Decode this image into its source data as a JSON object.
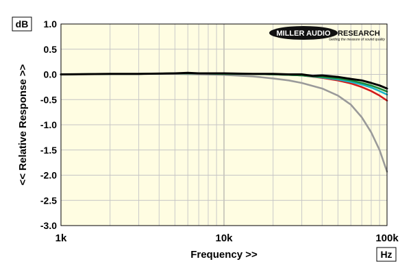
{
  "chart_data": {
    "type": "line",
    "xlabel": "Frequency >>",
    "ylabel": "<< Relative Response >>",
    "x_unit": "Hz",
    "y_unit": "dB",
    "xscale": "log",
    "xlim": [
      1000,
      100000
    ],
    "ylim": [
      -3.0,
      1.0
    ],
    "x_ticks": [
      "1k",
      "10k",
      "100k"
    ],
    "y_ticks": [
      "1.0",
      "0.5",
      "0.0",
      "-0.5",
      "-1.0",
      "-1.5",
      "-2.0",
      "-2.5",
      "-3.0"
    ],
    "grid": true,
    "logo": {
      "name": "MILLER AUDIO RESEARCH",
      "tagline": "Getting the measure of sound quality"
    },
    "series": [
      {
        "color": "#9a9a9a",
        "points": [
          [
            1000,
            0.0
          ],
          [
            2000,
            0.01
          ],
          [
            3000,
            0.01
          ],
          [
            5000,
            0.01
          ],
          [
            7000,
            0.0
          ],
          [
            10000,
            -0.01
          ],
          [
            15000,
            -0.04
          ],
          [
            20000,
            -0.08
          ],
          [
            25000,
            -0.12
          ],
          [
            30000,
            -0.17
          ],
          [
            40000,
            -0.28
          ],
          [
            50000,
            -0.42
          ],
          [
            60000,
            -0.6
          ],
          [
            70000,
            -0.85
          ],
          [
            80000,
            -1.15
          ],
          [
            90000,
            -1.5
          ],
          [
            100000,
            -1.93
          ]
        ]
      },
      {
        "color": "#d21a1a",
        "points": [
          [
            1000,
            0.0
          ],
          [
            2000,
            0.01
          ],
          [
            3000,
            0.01
          ],
          [
            5000,
            0.02
          ],
          [
            7000,
            0.02
          ],
          [
            10000,
            0.01
          ],
          [
            15000,
            0.01
          ],
          [
            20000,
            0.0
          ],
          [
            25000,
            -0.01
          ],
          [
            30000,
            -0.02
          ],
          [
            40000,
            -0.07
          ],
          [
            50000,
            -0.12
          ],
          [
            60000,
            -0.18
          ],
          [
            70000,
            -0.25
          ],
          [
            80000,
            -0.33
          ],
          [
            90000,
            -0.42
          ],
          [
            100000,
            -0.52
          ]
        ]
      },
      {
        "color": "#17b3c9",
        "points": [
          [
            1000,
            0.0
          ],
          [
            2000,
            0.01
          ],
          [
            3000,
            0.01
          ],
          [
            5000,
            0.02
          ],
          [
            7000,
            0.02
          ],
          [
            10000,
            0.01
          ],
          [
            15000,
            0.01
          ],
          [
            20000,
            0.0
          ],
          [
            25000,
            -0.01
          ],
          [
            30000,
            -0.02
          ],
          [
            40000,
            -0.06
          ],
          [
            50000,
            -0.1
          ],
          [
            60000,
            -0.15
          ],
          [
            70000,
            -0.2
          ],
          [
            80000,
            -0.26
          ],
          [
            90000,
            -0.33
          ],
          [
            100000,
            -0.4
          ]
        ]
      },
      {
        "color": "#1c8a3c",
        "points": [
          [
            1000,
            0.0
          ],
          [
            2000,
            0.01
          ],
          [
            3000,
            0.01
          ],
          [
            5000,
            0.02
          ],
          [
            7000,
            0.02
          ],
          [
            10000,
            0.01
          ],
          [
            15000,
            0.01
          ],
          [
            20000,
            0.0
          ],
          [
            25000,
            -0.01
          ],
          [
            30000,
            -0.02
          ],
          [
            40000,
            -0.05
          ],
          [
            50000,
            -0.08
          ],
          [
            60000,
            -0.12
          ],
          [
            70000,
            -0.17
          ],
          [
            80000,
            -0.22
          ],
          [
            90000,
            -0.28
          ],
          [
            100000,
            -0.34
          ]
        ]
      },
      {
        "color": "#000000",
        "points": [
          [
            1000,
            0.0
          ],
          [
            2000,
            0.01
          ],
          [
            3000,
            0.01
          ],
          [
            5000,
            0.02
          ],
          [
            6000,
            0.03
          ],
          [
            7000,
            0.02
          ],
          [
            10000,
            0.02
          ],
          [
            15000,
            0.01
          ],
          [
            20000,
            0.01
          ],
          [
            25000,
            0.0
          ],
          [
            30000,
            0.0
          ],
          [
            35000,
            -0.03
          ],
          [
            40000,
            -0.02
          ],
          [
            50000,
            -0.05
          ],
          [
            60000,
            -0.09
          ],
          [
            70000,
            -0.12
          ],
          [
            80000,
            -0.17
          ],
          [
            90000,
            -0.22
          ],
          [
            100000,
            -0.28
          ]
        ]
      }
    ]
  }
}
